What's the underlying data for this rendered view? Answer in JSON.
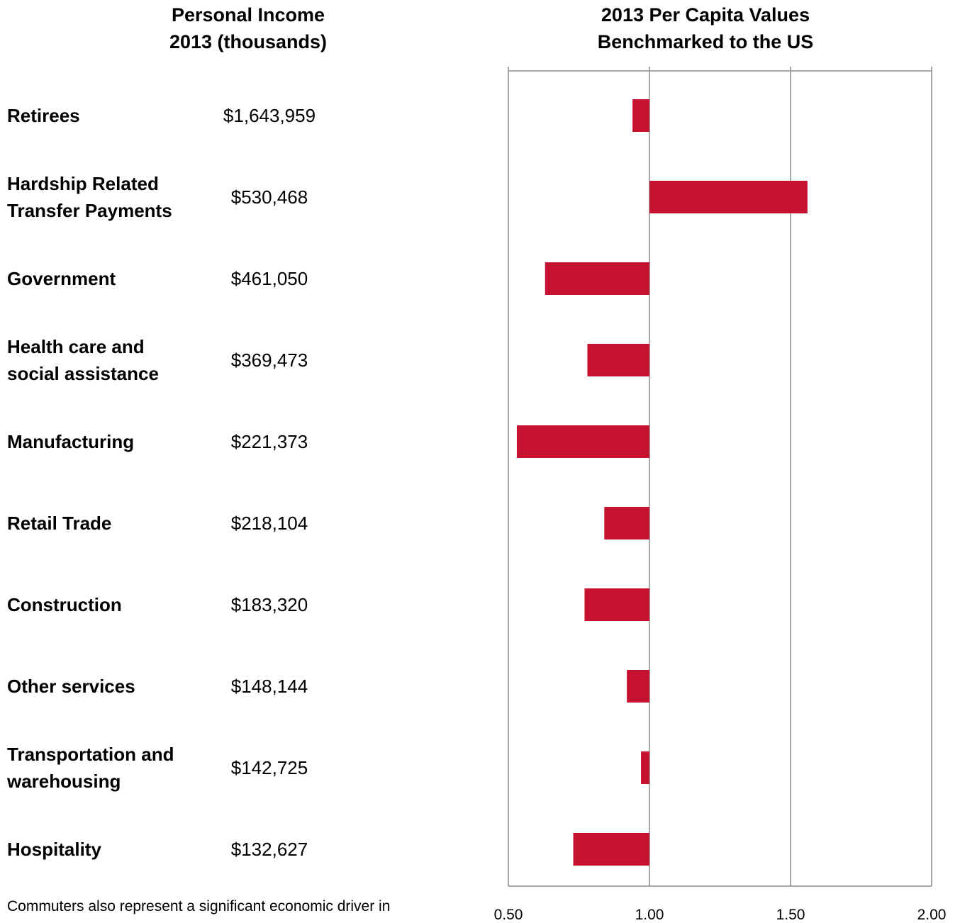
{
  "left_header": "Personal Income\n2013 (thousands)",
  "right_header": "2013 Per Capita Values\nBenchmarked to the US",
  "rows": [
    {
      "label": "Retirees",
      "income": "$1,643,959"
    },
    {
      "label": "Hardship Related\nTransfer Payments",
      "income": "$530,468"
    },
    {
      "label": "Government",
      "income": "$461,050"
    },
    {
      "label": "Health care and\nsocial assistance",
      "income": "$369,473"
    },
    {
      "label": "Manufacturing",
      "income": "$221,373"
    },
    {
      "label": "Retail Trade",
      "income": "$218,104"
    },
    {
      "label": "Construction",
      "income": "$183,320"
    },
    {
      "label": "Other services",
      "income": "$148,144"
    },
    {
      "label": "Transportation and\nwarehousing",
      "income": "$142,725"
    },
    {
      "label": "Hospitality",
      "income": "$132,627"
    }
  ],
  "footer_text": "Commuters also represent a significant economic driver in",
  "colors": {
    "bar": "#c41230",
    "grid": "#8c8c8c"
  },
  "chart_data": {
    "type": "bar",
    "orientation": "horizontal",
    "title": "2013 Per Capita Values\nBenchmarked to the US",
    "categories": [
      "Retirees",
      "Hardship Related Transfer Payments",
      "Government",
      "Health care and social assistance",
      "Manufacturing",
      "Retail Trade",
      "Construction",
      "Other services",
      "Transportation and warehousing",
      "Hospitality"
    ],
    "values": [
      0.94,
      1.56,
      0.63,
      0.78,
      0.53,
      0.84,
      0.77,
      0.92,
      0.97,
      0.73
    ],
    "baseline": 1.0,
    "xlim": [
      0.5,
      2.0
    ],
    "xticks": [
      "0.50",
      "1.00",
      "1.50",
      "2.00"
    ],
    "grid": true
  }
}
